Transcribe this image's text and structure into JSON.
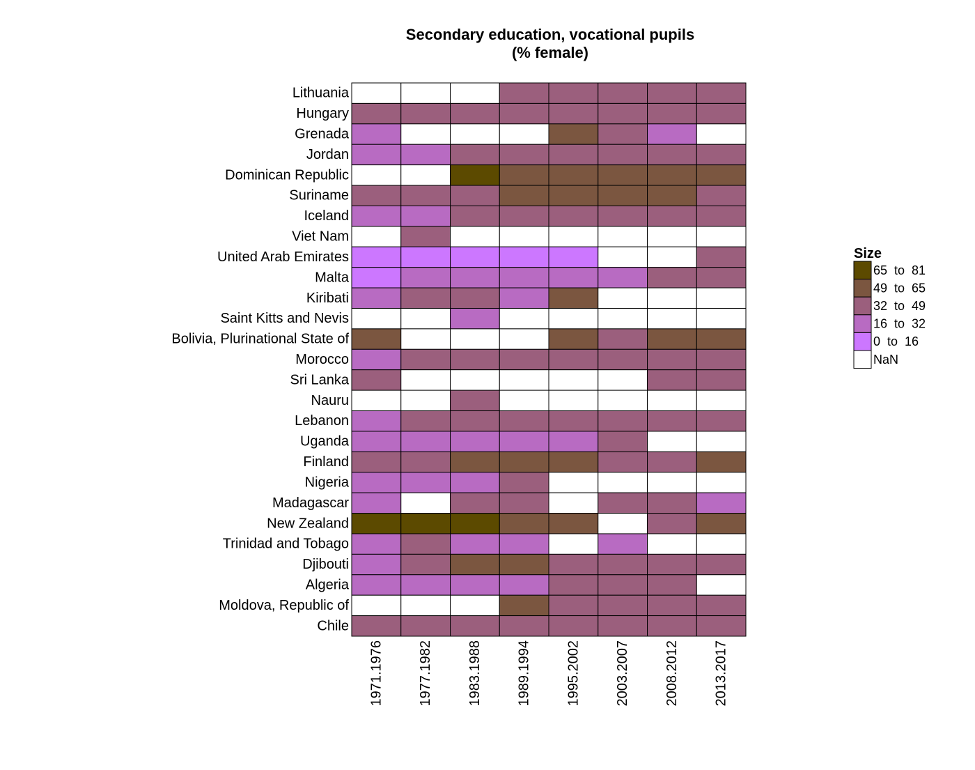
{
  "chart_data": {
    "type": "heatmap",
    "title": [
      "Secondary education, vocational pupils",
      "(% female)"
    ],
    "xlabel": "",
    "ylabel": "",
    "columns": [
      "1971.1976",
      "1977.1982",
      "1983.1988",
      "1989.1994",
      "1995.2002",
      "2003.2007",
      "2008.2012",
      "2013.2017"
    ],
    "rows": [
      "Lithuania",
      "Hungary",
      "Grenada",
      "Jordan",
      "Dominican Republic",
      "Suriname",
      "Iceland",
      "Viet Nam",
      "United Arab Emirates",
      "Malta",
      "Kiribati",
      "Saint Kitts and Nevis",
      "Bolivia, Plurinational State of",
      "Morocco",
      "Sri Lanka",
      "Nauru",
      "Lebanon",
      "Uganda",
      "Finland",
      "Nigeria",
      "Madagascar",
      "New Zealand",
      "Trinidad and Tobago",
      "Djibouti",
      "Algeria",
      "Moldova, Republic of",
      "Chile"
    ],
    "bin_codes": {
      "0": "NaN",
      "1": "0 to 16",
      "2": "16 to 32",
      "3": "32 to 49",
      "4": "49 to 65",
      "5": "65 to 81"
    },
    "cells": [
      [
        0,
        0,
        0,
        3,
        3,
        3,
        3,
        3
      ],
      [
        3,
        3,
        3,
        3,
        3,
        3,
        3,
        3
      ],
      [
        2,
        0,
        0,
        0,
        4,
        3,
        2,
        0
      ],
      [
        2,
        2,
        3,
        3,
        3,
        3,
        3,
        3
      ],
      [
        0,
        0,
        5,
        4,
        4,
        4,
        4,
        4
      ],
      [
        3,
        3,
        3,
        4,
        4,
        4,
        4,
        3
      ],
      [
        2,
        2,
        3,
        3,
        3,
        3,
        3,
        3
      ],
      [
        0,
        3,
        0,
        0,
        0,
        0,
        0,
        0
      ],
      [
        1,
        1,
        1,
        1,
        1,
        0,
        0,
        3
      ],
      [
        1,
        2,
        2,
        2,
        2,
        2,
        3,
        3
      ],
      [
        2,
        3,
        3,
        2,
        4,
        0,
        0,
        0
      ],
      [
        0,
        0,
        2,
        0,
        0,
        0,
        0,
        0
      ],
      [
        4,
        0,
        0,
        0,
        4,
        3,
        4,
        4
      ],
      [
        2,
        3,
        3,
        3,
        3,
        3,
        3,
        3
      ],
      [
        3,
        0,
        0,
        0,
        0,
        0,
        3,
        3
      ],
      [
        0,
        0,
        3,
        0,
        0,
        0,
        0,
        0
      ],
      [
        2,
        3,
        3,
        3,
        3,
        3,
        3,
        3
      ],
      [
        2,
        2,
        2,
        2,
        2,
        3,
        0,
        0
      ],
      [
        3,
        3,
        4,
        4,
        4,
        3,
        3,
        4
      ],
      [
        2,
        2,
        2,
        3,
        0,
        0,
        0,
        0
      ],
      [
        2,
        0,
        3,
        3,
        0,
        3,
        3,
        2
      ],
      [
        5,
        5,
        5,
        4,
        4,
        0,
        3,
        4
      ],
      [
        2,
        3,
        2,
        2,
        0,
        2,
        0,
        0
      ],
      [
        2,
        3,
        4,
        4,
        3,
        3,
        3,
        3
      ],
      [
        2,
        2,
        2,
        2,
        3,
        3,
        3,
        0
      ],
      [
        0,
        0,
        0,
        4,
        3,
        3,
        3,
        3
      ],
      [
        3,
        3,
        3,
        3,
        3,
        3,
        3,
        3
      ]
    ],
    "legend": {
      "title": "Size",
      "placement": "right",
      "items": [
        {
          "code": 5,
          "label": "65  to  81",
          "color": "#5c4a00"
        },
        {
          "code": 4,
          "label": "49  to  65",
          "color": "#7b5640"
        },
        {
          "code": 3,
          "label": "32  to  49",
          "color": "#9b5f7d"
        },
        {
          "code": 2,
          "label": "16  to  32",
          "color": "#b86bc2"
        },
        {
          "code": 1,
          "label": "0  to  16",
          "color": "#cc77ff"
        },
        {
          "code": 0,
          "label": "NaN",
          "color": "#ffffff"
        }
      ]
    },
    "grid": false
  }
}
